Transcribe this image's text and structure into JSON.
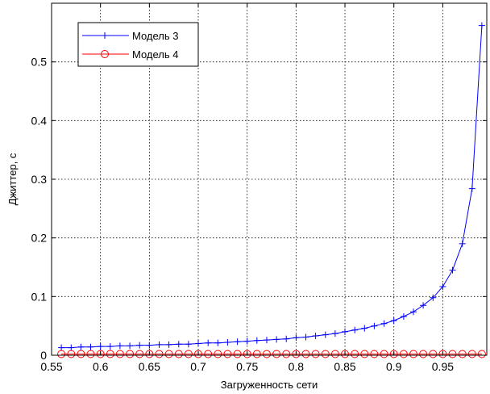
{
  "chart_data": {
    "type": "line",
    "xlabel": "Загруженность сети",
    "ylabel": "Джиттер, с",
    "xlim": [
      0.55,
      0.995
    ],
    "ylim": [
      0,
      0.6
    ],
    "grid": true,
    "legend_position": "top-left",
    "x_ticks": [
      {
        "value": 0.55,
        "label": "0.55"
      },
      {
        "value": 0.6,
        "label": "0.6"
      },
      {
        "value": 0.65,
        "label": "0.65"
      },
      {
        "value": 0.7,
        "label": "0.7"
      },
      {
        "value": 0.75,
        "label": "0.75"
      },
      {
        "value": 0.8,
        "label": "0.8"
      },
      {
        "value": 0.85,
        "label": "0.85"
      },
      {
        "value": 0.9,
        "label": "0.9"
      },
      {
        "value": 0.95,
        "label": "0.95"
      }
    ],
    "y_ticks": [
      {
        "value": 0,
        "label": "0"
      },
      {
        "value": 0.1,
        "label": "0.1"
      },
      {
        "value": 0.2,
        "label": "0.2"
      },
      {
        "value": 0.3,
        "label": "0.3"
      },
      {
        "value": 0.4,
        "label": "0.4"
      },
      {
        "value": 0.5,
        "label": "0.5"
      }
    ],
    "series": [
      {
        "name": "Модель 3",
        "color": "#0000ff",
        "marker": "plus",
        "x": [
          0.56,
          0.57,
          0.58,
          0.59,
          0.6,
          0.61,
          0.62,
          0.63,
          0.64,
          0.65,
          0.66,
          0.67,
          0.68,
          0.69,
          0.7,
          0.71,
          0.72,
          0.73,
          0.74,
          0.75,
          0.76,
          0.77,
          0.78,
          0.79,
          0.8,
          0.81,
          0.82,
          0.83,
          0.84,
          0.85,
          0.86,
          0.87,
          0.88,
          0.89,
          0.9,
          0.91,
          0.92,
          0.93,
          0.94,
          0.95,
          0.96,
          0.97,
          0.98,
          0.99
        ],
        "values": [
          0.013,
          0.013,
          0.014,
          0.014,
          0.015,
          0.015,
          0.016,
          0.016,
          0.017,
          0.017,
          0.018,
          0.018,
          0.019,
          0.019,
          0.02,
          0.021,
          0.021,
          0.022,
          0.023,
          0.024,
          0.025,
          0.026,
          0.027,
          0.028,
          0.03,
          0.031,
          0.033,
          0.035,
          0.037,
          0.04,
          0.043,
          0.046,
          0.05,
          0.054,
          0.059,
          0.066,
          0.074,
          0.085,
          0.098,
          0.117,
          0.145,
          0.19,
          0.284,
          0.562
        ]
      },
      {
        "name": "Модель 4",
        "color": "#ff0000",
        "marker": "circle",
        "x": [
          0.56,
          0.57,
          0.58,
          0.59,
          0.6,
          0.61,
          0.62,
          0.63,
          0.64,
          0.65,
          0.66,
          0.67,
          0.68,
          0.69,
          0.7,
          0.71,
          0.72,
          0.73,
          0.74,
          0.75,
          0.76,
          0.77,
          0.78,
          0.79,
          0.8,
          0.81,
          0.82,
          0.83,
          0.84,
          0.85,
          0.86,
          0.87,
          0.88,
          0.89,
          0.9,
          0.91,
          0.92,
          0.93,
          0.94,
          0.95,
          0.96,
          0.97,
          0.98,
          0.99
        ],
        "values": [
          0.002,
          0.002,
          0.002,
          0.002,
          0.002,
          0.002,
          0.002,
          0.002,
          0.002,
          0.002,
          0.002,
          0.002,
          0.002,
          0.002,
          0.002,
          0.002,
          0.002,
          0.002,
          0.002,
          0.002,
          0.002,
          0.002,
          0.002,
          0.002,
          0.002,
          0.002,
          0.002,
          0.002,
          0.002,
          0.002,
          0.002,
          0.002,
          0.002,
          0.002,
          0.002,
          0.002,
          0.002,
          0.002,
          0.002,
          0.002,
          0.002,
          0.002,
          0.002,
          0.002
        ]
      }
    ]
  }
}
